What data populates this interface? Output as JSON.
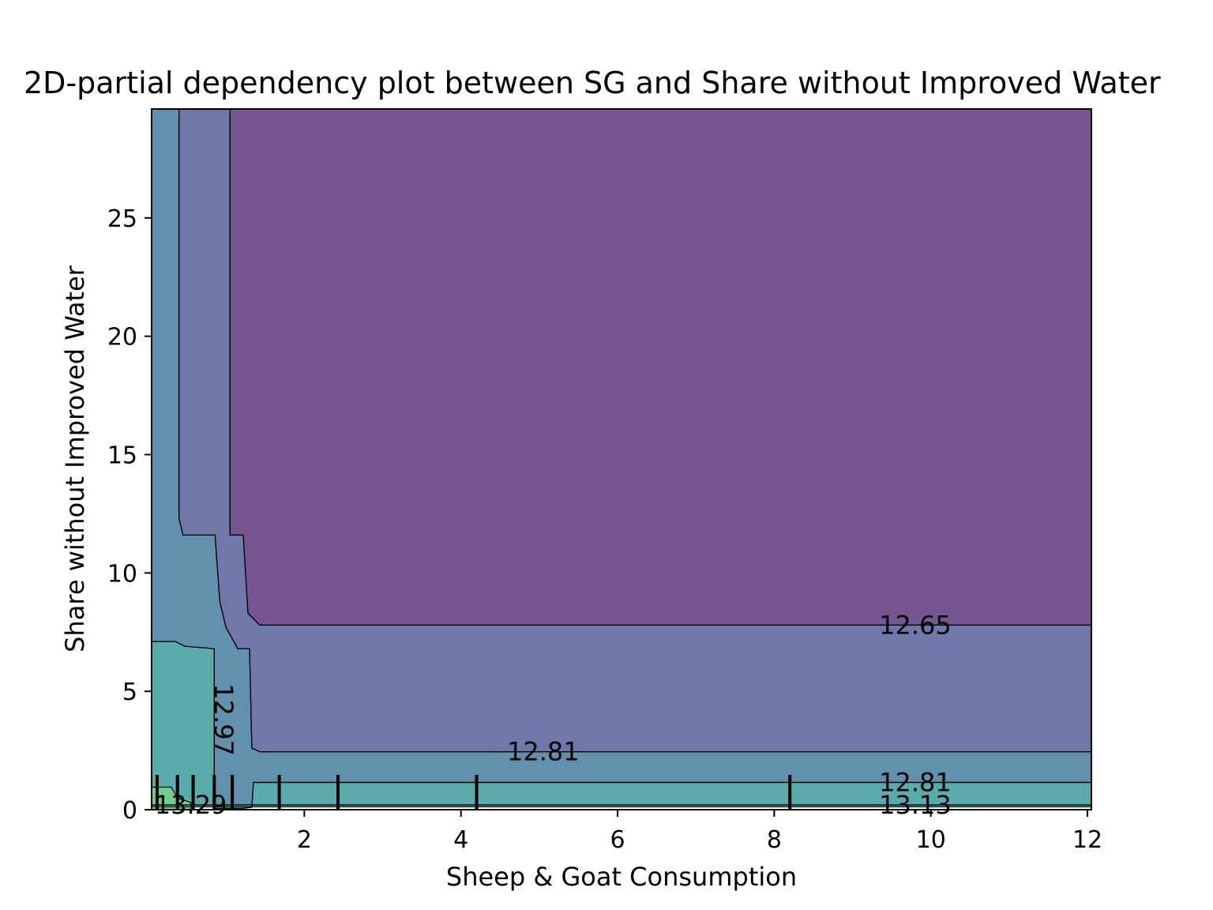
{
  "chart_data": {
    "type": "contour",
    "title": "2D-partial dependency plot between SG and Share without Improved Water",
    "xlabel": "Sheep & Goat Consumption",
    "ylabel": "Share without Improved Water",
    "xlim": [
      0.05,
      12.05
    ],
    "ylim": [
      0,
      29.6
    ],
    "x_ticks": [
      "2",
      "4",
      "6",
      "8",
      "10",
      "12"
    ],
    "x_tick_values": [
      2,
      4,
      6,
      8,
      10,
      12
    ],
    "y_ticks": [
      "0",
      "5",
      "10",
      "15",
      "20",
      "25"
    ],
    "y_tick_values": [
      0,
      5,
      10,
      15,
      20,
      25
    ],
    "contour_levels": [
      12.65,
      12.81,
      12.97,
      13.13,
      13.29
    ],
    "contour_labels": [
      {
        "text": "12.65",
        "x": 9.8,
        "y": 7.8
      },
      {
        "text": "12.81",
        "x": 5.05,
        "y": 2.45
      },
      {
        "text": "12.81",
        "x": 9.8,
        "y": 1.15
      },
      {
        "text": "13.13",
        "x": 9.8,
        "y": 0.2
      },
      {
        "text": "12.97",
        "x": 0.97,
        "y": 3.8
      },
      {
        "text": "13.29",
        "x": 0.55,
        "y": 0.2
      }
    ],
    "regions": [
      {
        "level_range": "< 12.65",
        "color": "#775590",
        "polygon": [
          [
            1.05,
            29.6
          ],
          [
            12.05,
            29.6
          ],
          [
            12.05,
            7.8
          ],
          [
            1.43,
            7.8
          ],
          [
            1.28,
            8.3
          ],
          [
            1.22,
            11.6
          ],
          [
            1.05,
            11.6
          ]
        ]
      },
      {
        "level_range": "12.65–12.81",
        "color": "#6f78a8",
        "polygon": [
          [
            0.4,
            29.6
          ],
          [
            1.05,
            29.6
          ],
          [
            1.05,
            11.6
          ],
          [
            1.22,
            11.6
          ],
          [
            1.28,
            8.3
          ],
          [
            1.43,
            7.8
          ],
          [
            12.05,
            7.8
          ],
          [
            12.05,
            2.45
          ],
          [
            1.43,
            2.45
          ],
          [
            1.33,
            2.6
          ],
          [
            1.3,
            6.8
          ],
          [
            1.15,
            6.8
          ],
          [
            1.0,
            7.7
          ],
          [
            0.92,
            8.8
          ],
          [
            0.86,
            11.6
          ],
          [
            0.45,
            11.6
          ],
          [
            0.4,
            12.3
          ]
        ]
      },
      {
        "level_range": "12.81–12.97",
        "color": "#6191ac",
        "polygon": [
          [
            0.05,
            29.6
          ],
          [
            0.4,
            29.6
          ],
          [
            0.4,
            12.3
          ],
          [
            0.45,
            11.6
          ],
          [
            0.86,
            11.6
          ],
          [
            0.92,
            8.8
          ],
          [
            1.0,
            7.7
          ],
          [
            1.15,
            6.8
          ],
          [
            1.3,
            6.8
          ],
          [
            1.33,
            2.6
          ],
          [
            1.43,
            2.45
          ],
          [
            12.05,
            2.45
          ],
          [
            12.05,
            1.15
          ],
          [
            1.35,
            1.15
          ],
          [
            1.33,
            0.1
          ],
          [
            1.2,
            0.05
          ],
          [
            0.85,
            0.05
          ],
          [
            0.85,
            6.8
          ],
          [
            0.48,
            6.9
          ],
          [
            0.35,
            7.1
          ],
          [
            0.05,
            7.1
          ]
        ]
      },
      {
        "level_range": "12.97–13.13",
        "color": "#5aacac",
        "polygon": [
          [
            0.05,
            7.1
          ],
          [
            0.35,
            7.1
          ],
          [
            0.48,
            6.9
          ],
          [
            0.85,
            6.8
          ],
          [
            0.85,
            0.05
          ],
          [
            1.2,
            0.05
          ],
          [
            1.33,
            0.1
          ],
          [
            1.35,
            1.15
          ],
          [
            12.05,
            1.15
          ],
          [
            12.05,
            0.2
          ],
          [
            0.05,
            0.2
          ]
        ]
      },
      {
        "level_range": "13.13–13.29",
        "color": "#5cc1a2",
        "polygon": [
          [
            0.05,
            0.2
          ],
          [
            12.05,
            0.2
          ],
          [
            12.05,
            0.12
          ],
          [
            0.05,
            0.12
          ]
        ]
      },
      {
        "level_range": "> 13.29",
        "color": "#6fcf8f",
        "polygon": [
          [
            0.05,
            0.95
          ],
          [
            0.3,
            0.95
          ],
          [
            0.38,
            0.5
          ],
          [
            0.55,
            0.3
          ],
          [
            0.55,
            0
          ],
          [
            0.05,
            0
          ]
        ]
      }
    ],
    "rug_x": [
      0.12,
      0.38,
      0.58,
      0.85,
      1.08,
      1.68,
      2.43,
      4.2,
      8.2
    ]
  },
  "colors": {
    "background": "#ffffff",
    "contour_line": "#000000"
  }
}
